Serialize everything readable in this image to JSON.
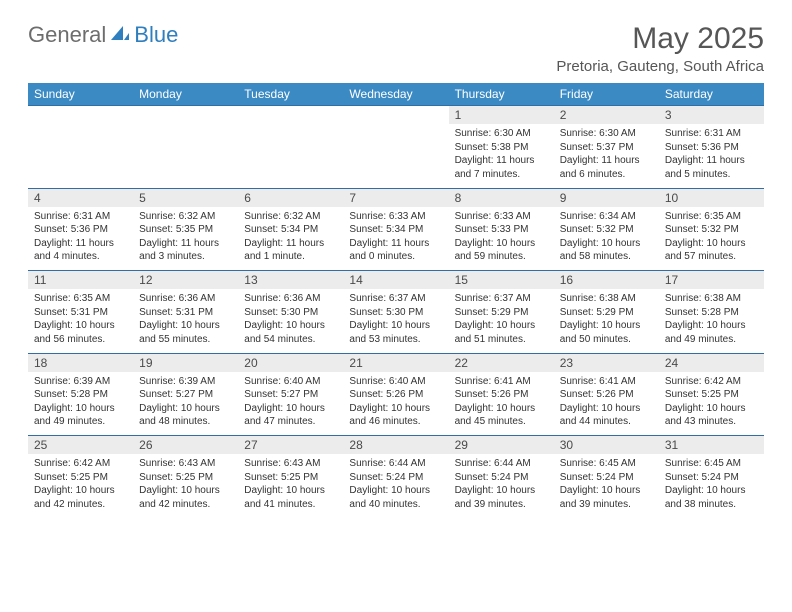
{
  "brand": {
    "part1": "General",
    "part2": "Blue"
  },
  "title": "May 2025",
  "location": "Pretoria, Gauteng, South Africa",
  "colors": {
    "header_bg": "#3b8ac4",
    "header_text": "#ffffff",
    "daynum_bg": "#ececec",
    "rule": "#2f6fa5",
    "title_color": "#565656",
    "logo_gray": "#6d6d6d",
    "logo_blue": "#2f7fbf"
  },
  "weekdays": [
    "Sunday",
    "Monday",
    "Tuesday",
    "Wednesday",
    "Thursday",
    "Friday",
    "Saturday"
  ],
  "weeks": [
    {
      "nums": [
        "",
        "",
        "",
        "",
        "1",
        "2",
        "3"
      ],
      "cells": [
        "",
        "",
        "",
        "",
        "Sunrise: 6:30 AM\nSunset: 5:38 PM\nDaylight: 11 hours and 7 minutes.",
        "Sunrise: 6:30 AM\nSunset: 5:37 PM\nDaylight: 11 hours and 6 minutes.",
        "Sunrise: 6:31 AM\nSunset: 5:36 PM\nDaylight: 11 hours and 5 minutes."
      ]
    },
    {
      "nums": [
        "4",
        "5",
        "6",
        "7",
        "8",
        "9",
        "10"
      ],
      "cells": [
        "Sunrise: 6:31 AM\nSunset: 5:36 PM\nDaylight: 11 hours and 4 minutes.",
        "Sunrise: 6:32 AM\nSunset: 5:35 PM\nDaylight: 11 hours and 3 minutes.",
        "Sunrise: 6:32 AM\nSunset: 5:34 PM\nDaylight: 11 hours and 1 minute.",
        "Sunrise: 6:33 AM\nSunset: 5:34 PM\nDaylight: 11 hours and 0 minutes.",
        "Sunrise: 6:33 AM\nSunset: 5:33 PM\nDaylight: 10 hours and 59 minutes.",
        "Sunrise: 6:34 AM\nSunset: 5:32 PM\nDaylight: 10 hours and 58 minutes.",
        "Sunrise: 6:35 AM\nSunset: 5:32 PM\nDaylight: 10 hours and 57 minutes."
      ]
    },
    {
      "nums": [
        "11",
        "12",
        "13",
        "14",
        "15",
        "16",
        "17"
      ],
      "cells": [
        "Sunrise: 6:35 AM\nSunset: 5:31 PM\nDaylight: 10 hours and 56 minutes.",
        "Sunrise: 6:36 AM\nSunset: 5:31 PM\nDaylight: 10 hours and 55 minutes.",
        "Sunrise: 6:36 AM\nSunset: 5:30 PM\nDaylight: 10 hours and 54 minutes.",
        "Sunrise: 6:37 AM\nSunset: 5:30 PM\nDaylight: 10 hours and 53 minutes.",
        "Sunrise: 6:37 AM\nSunset: 5:29 PM\nDaylight: 10 hours and 51 minutes.",
        "Sunrise: 6:38 AM\nSunset: 5:29 PM\nDaylight: 10 hours and 50 minutes.",
        "Sunrise: 6:38 AM\nSunset: 5:28 PM\nDaylight: 10 hours and 49 minutes."
      ]
    },
    {
      "nums": [
        "18",
        "19",
        "20",
        "21",
        "22",
        "23",
        "24"
      ],
      "cells": [
        "Sunrise: 6:39 AM\nSunset: 5:28 PM\nDaylight: 10 hours and 49 minutes.",
        "Sunrise: 6:39 AM\nSunset: 5:27 PM\nDaylight: 10 hours and 48 minutes.",
        "Sunrise: 6:40 AM\nSunset: 5:27 PM\nDaylight: 10 hours and 47 minutes.",
        "Sunrise: 6:40 AM\nSunset: 5:26 PM\nDaylight: 10 hours and 46 minutes.",
        "Sunrise: 6:41 AM\nSunset: 5:26 PM\nDaylight: 10 hours and 45 minutes.",
        "Sunrise: 6:41 AM\nSunset: 5:26 PM\nDaylight: 10 hours and 44 minutes.",
        "Sunrise: 6:42 AM\nSunset: 5:25 PM\nDaylight: 10 hours and 43 minutes."
      ]
    },
    {
      "nums": [
        "25",
        "26",
        "27",
        "28",
        "29",
        "30",
        "31"
      ],
      "cells": [
        "Sunrise: 6:42 AM\nSunset: 5:25 PM\nDaylight: 10 hours and 42 minutes.",
        "Sunrise: 6:43 AM\nSunset: 5:25 PM\nDaylight: 10 hours and 42 minutes.",
        "Sunrise: 6:43 AM\nSunset: 5:25 PM\nDaylight: 10 hours and 41 minutes.",
        "Sunrise: 6:44 AM\nSunset: 5:24 PM\nDaylight: 10 hours and 40 minutes.",
        "Sunrise: 6:44 AM\nSunset: 5:24 PM\nDaylight: 10 hours and 39 minutes.",
        "Sunrise: 6:45 AM\nSunset: 5:24 PM\nDaylight: 10 hours and 39 minutes.",
        "Sunrise: 6:45 AM\nSunset: 5:24 PM\nDaylight: 10 hours and 38 minutes."
      ]
    }
  ]
}
